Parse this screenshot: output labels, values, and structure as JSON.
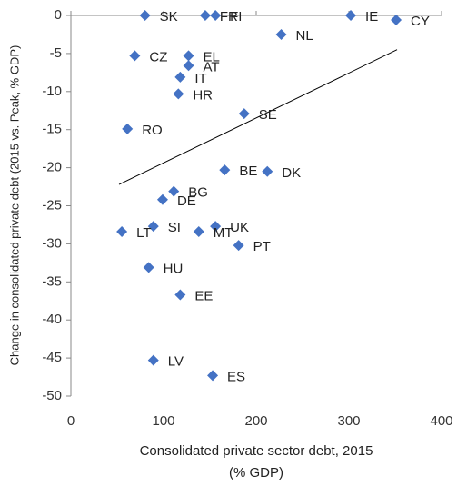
{
  "chart_data": {
    "type": "scatter",
    "x_label": [
      "Consolidated private sector debt, 2015",
      "(% GDP)"
    ],
    "y_label": "Change in consolidated private debt (2015 vs. Peak, % GDP)",
    "color": "#4472c4",
    "xlim": [
      0,
      400
    ],
    "xticks": [
      0,
      100,
      200,
      300,
      400
    ],
    "ylim": [
      -50,
      0
    ],
    "yticks": [
      -50,
      -45,
      -40,
      -35,
      -30,
      -25,
      -20,
      -15,
      -10,
      -5,
      0
    ],
    "labels": [
      "SK",
      "FR",
      "FI",
      "IE",
      "CY",
      "NL",
      "CZ",
      "EL",
      "AT",
      "IT",
      "HR",
      "SE",
      "RO",
      "BE",
      "DK",
      "BG",
      "DE",
      "SI",
      "UK",
      "MT",
      "LT",
      "PT",
      "HU",
      "EE",
      "LV",
      "ES"
    ],
    "x": [
      80,
      145,
      156,
      302,
      351,
      227,
      69,
      127,
      127,
      118,
      116,
      187,
      61,
      166,
      212,
      111,
      99,
      89,
      156,
      138,
      55,
      181,
      84,
      118,
      89,
      153
    ],
    "y": [
      0,
      0,
      0,
      0,
      -0.6,
      -2.5,
      -5.3,
      -5.3,
      -6.6,
      -8.1,
      -10.3,
      -12.9,
      -14.9,
      -20.3,
      -20.5,
      -23.1,
      -24.2,
      -27.7,
      -27.7,
      -28.4,
      -28.4,
      -30.2,
      -33.1,
      -36.7,
      -45.3,
      -47.3
    ],
    "trendline": {
      "x": [
        52,
        352
      ],
      "y": [
        -22.2,
        -4.5
      ]
    }
  }
}
